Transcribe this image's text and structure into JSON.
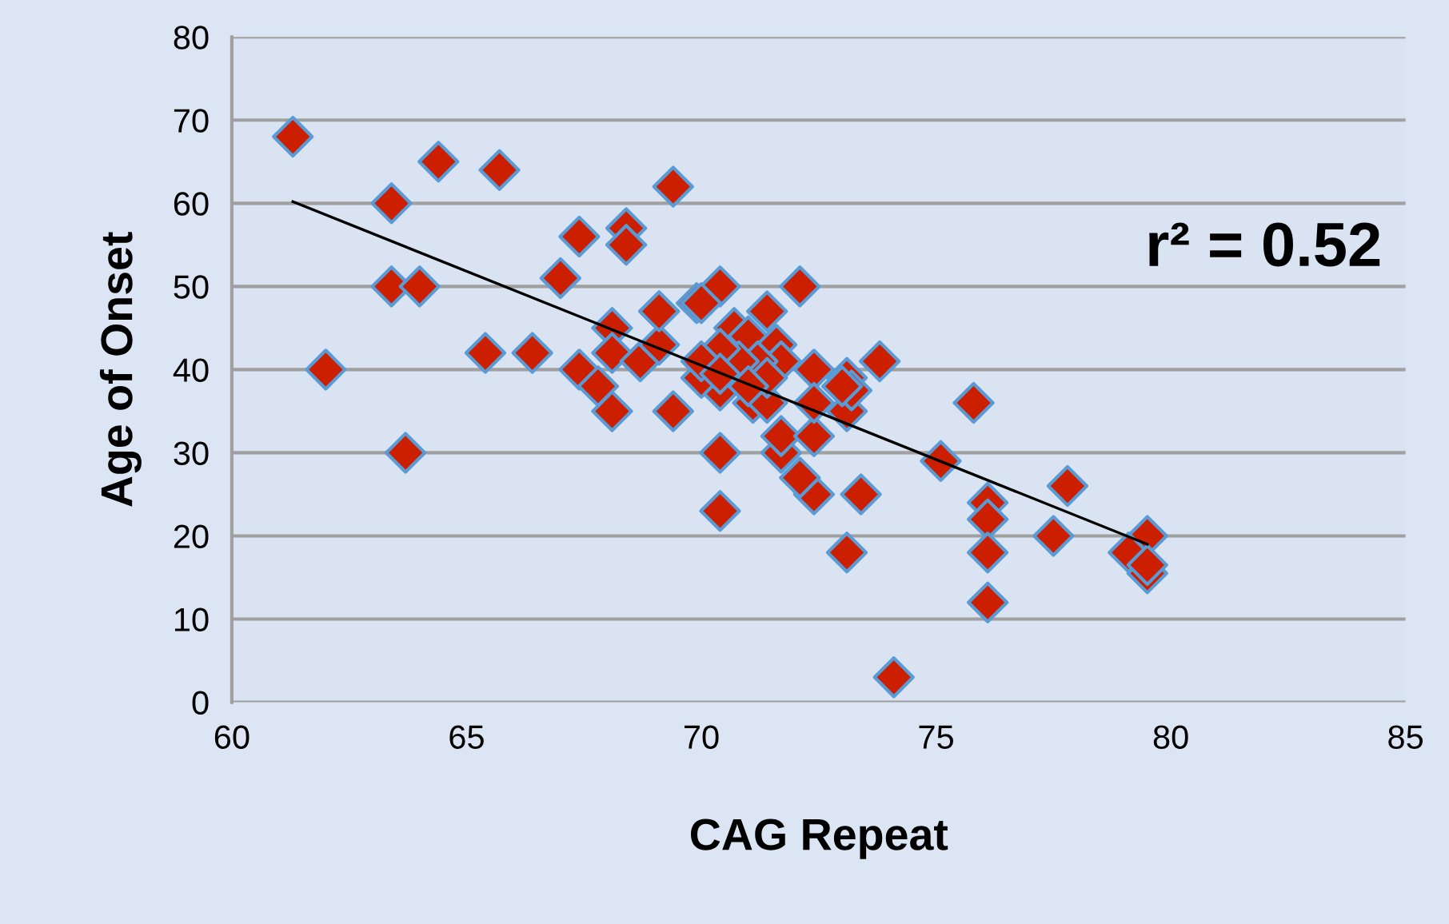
{
  "chart_data": {
    "type": "scatter",
    "xlabel": "CAG Repeat",
    "ylabel": "Age of Onset",
    "annotations": [
      "r² = 0.52"
    ],
    "xlim": [
      60,
      85
    ],
    "xticks": [
      60,
      65,
      70,
      75,
      80,
      85
    ],
    "ylim": [
      0,
      80
    ],
    "yticks": [
      0,
      10,
      20,
      30,
      40,
      50,
      60,
      70,
      80
    ],
    "grid": "y",
    "marker": "diamond",
    "series": [
      {
        "color": "#cc1f00",
        "x": [
          61.3,
          64.4,
          65.7,
          63.4,
          69.4,
          67.4,
          68.4,
          68.4,
          67.0,
          63.4,
          64.0,
          62.0,
          63.7,
          65.4,
          66.4,
          67.4,
          67.8,
          68.1,
          68.1,
          68.1,
          69.1,
          68.7,
          69.4,
          69.1,
          69.9,
          72.1,
          69.1,
          70.4,
          70.0,
          71.4,
          73.8,
          70.4,
          70.4,
          73.1,
          73.4,
          72.4,
          72.1,
          71.7,
          71.7,
          72.4,
          73.1,
          73.1,
          72.4,
          72.4,
          71.1,
          71.4,
          70.4,
          70.0,
          70.7,
          71.0,
          71.6,
          71.7,
          71.2,
          70.8,
          70.4,
          70.0,
          70.4,
          71.4,
          71.0,
          73.2,
          73.0,
          75.1,
          75.8,
          76.1,
          76.1,
          76.1,
          76.1,
          77.8,
          77.5,
          79.5,
          79.1,
          79.5,
          79.5,
          74.1
        ],
        "values": [
          68,
          65,
          64,
          60,
          62,
          56,
          57,
          55,
          51,
          50,
          50,
          40,
          30,
          42,
          42,
          40,
          38,
          35,
          45,
          42,
          47,
          41,
          35,
          43,
          48,
          50,
          47,
          50,
          48,
          47,
          41,
          30,
          23,
          18,
          25,
          25,
          27,
          30,
          32,
          32,
          35,
          39,
          40,
          36,
          36,
          36,
          37.5,
          39,
          45,
          44,
          43,
          41,
          41,
          41,
          42.5,
          41,
          39.5,
          39,
          38,
          37.5,
          38,
          29,
          36,
          24,
          22,
          18,
          12,
          26,
          20,
          20,
          18,
          15.5,
          16.5,
          3
        ]
      },
      {
        "type": "line",
        "color": "#000000",
        "marker": "none",
        "x": [
          61.3,
          79.5
        ],
        "values": [
          60.2,
          19.0
        ]
      }
    ]
  }
}
